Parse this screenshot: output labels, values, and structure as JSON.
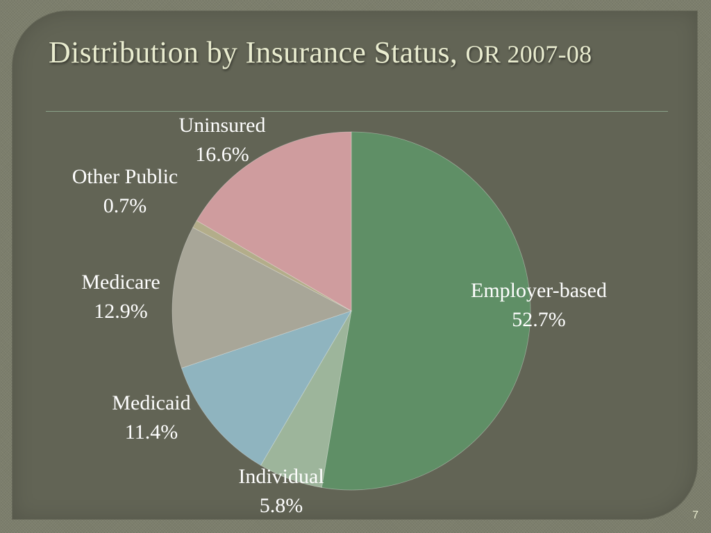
{
  "slide": {
    "title_main": "Distribution by Insurance Status,",
    "title_year": "OR 2007-08",
    "page_number": "7"
  },
  "chart_data": {
    "type": "pie",
    "title": "Distribution by Insurance Status, OR 2007-08",
    "start_angle_deg": 0,
    "direction": "clockwise",
    "slices": [
      {
        "key": "employer",
        "label": "Employer-based",
        "value": 52.7,
        "value_label": "52.7%",
        "color": "#5f8f66"
      },
      {
        "key": "individual",
        "label": "Individual",
        "value": 5.8,
        "value_label": "5.8%",
        "color": "#9db59b"
      },
      {
        "key": "medicaid",
        "label": "Medicaid",
        "value": 11.4,
        "value_label": "11.4%",
        "color": "#8fb4bf"
      },
      {
        "key": "medicare",
        "label": "Medicare",
        "value": 12.9,
        "value_label": "12.9%",
        "color": "#a8a698"
      },
      {
        "key": "other_public",
        "label": "Other Public",
        "value": 0.7,
        "value_label": "0.7%",
        "color": "#b3ad8a"
      },
      {
        "key": "uninsured",
        "label": "Uninsured",
        "value": 16.6,
        "value_label": "16.6%",
        "color": "#cf9c9e"
      }
    ]
  }
}
